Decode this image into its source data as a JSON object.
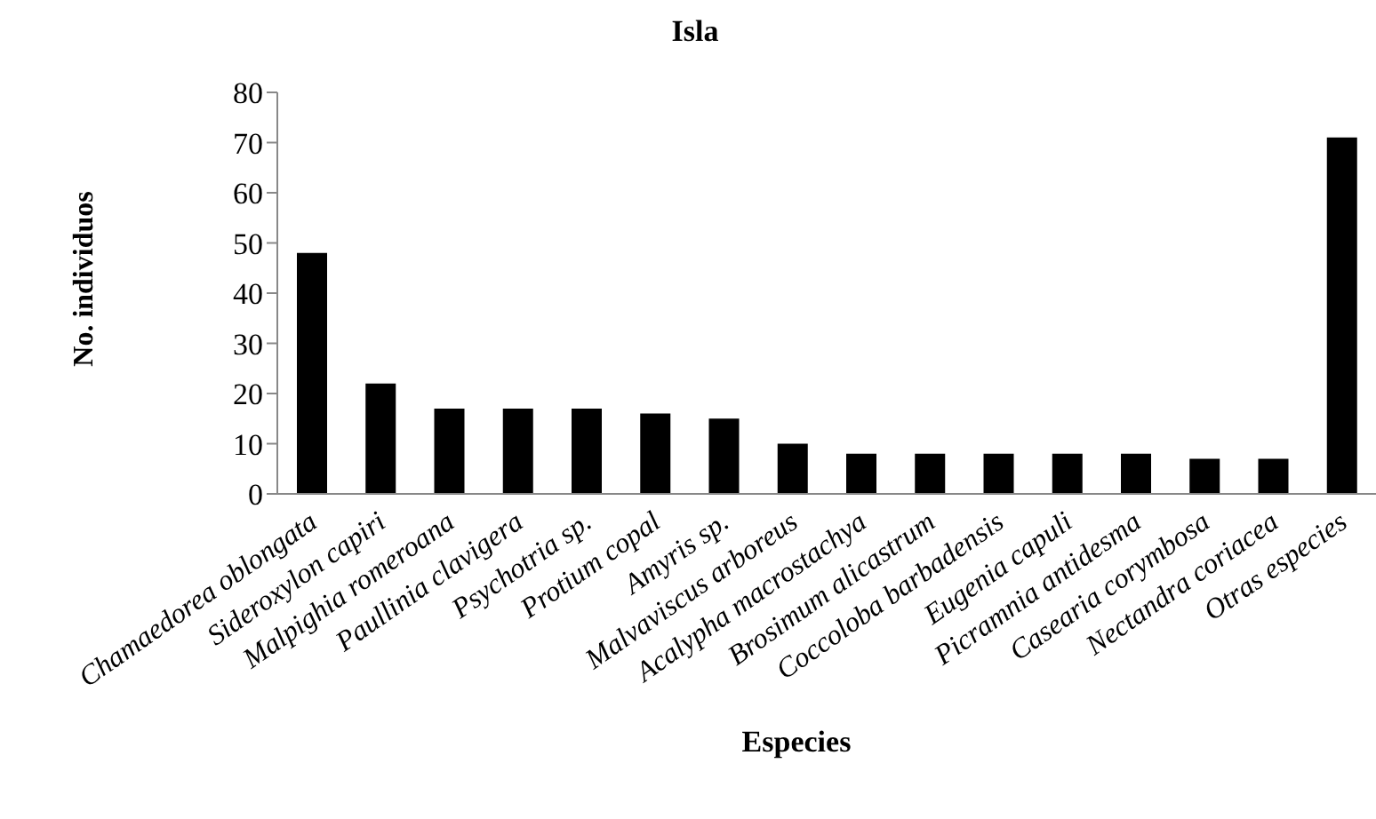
{
  "chart_data": {
    "type": "bar",
    "title": "Isla",
    "xlabel": "Especies",
    "ylabel": "No. individuos",
    "categories": [
      "Chamaedorea oblongata",
      "Sideroxylon capiri",
      "Malpighia romeroana",
      "Paullinia clavigera",
      "Psychotria sp.",
      "Protium copal",
      "Amyris sp.",
      "Malvaviscus arboreus",
      "Acalypha macrostachya",
      "Brosimum alicastrum",
      "Coccoloba barbadensis",
      "Eugenia capuli",
      "Picramnia antidesma",
      "Casearia corymbosa",
      "Nectandra coriacea",
      "Otras especies"
    ],
    "values": [
      48,
      22,
      17,
      17,
      17,
      16,
      15,
      10,
      8,
      8,
      8,
      8,
      8,
      7,
      7,
      71
    ],
    "color": "#000000",
    "ylim": [
      0,
      80
    ],
    "yticks": [
      0,
      10,
      20,
      30,
      40,
      50,
      60,
      70,
      80
    ],
    "grid": false,
    "legend": false
  }
}
